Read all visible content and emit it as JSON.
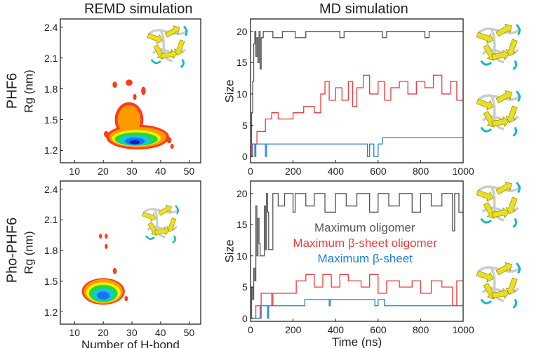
{
  "column_titles": [
    "REMD simulation",
    "MD simulation"
  ],
  "row_labels": [
    "PHF6",
    "Pho-PHF6"
  ],
  "colors": {
    "oligomer": "#555555",
    "beta_oligomer": "#f03a3a",
    "beta_sheet": "#1e7fe0",
    "contour_levels": [
      "#ff3a1a",
      "#ff9a00",
      "#f5f000",
      "#22d840",
      "#10c8e0",
      "#1e70f0",
      "#1020b0"
    ]
  },
  "chart_data": [
    {
      "type": "heatmap",
      "panel": "PHF6 REMD",
      "xlabel": "",
      "ylabel": "Rg (nm)",
      "xlim": [
        5,
        54
      ],
      "ylim": [
        1.08,
        2.48
      ],
      "xticks": [
        10,
        20,
        30,
        40,
        50
      ],
      "yticks": [
        1.2,
        1.5,
        1.8,
        2.1,
        2.4
      ],
      "contours": [
        {
          "level": 0,
          "blobs": [
            [
              32,
              1.33,
              11,
              0.12
            ],
            [
              29,
              1.5,
              5,
              0.17
            ],
            [
              24,
              1.84,
              0.8,
              0.03
            ],
            [
              29,
              1.86,
              1.2,
              0.03
            ],
            [
              34,
              1.78,
              0.8,
              0.04
            ],
            [
              31,
              1.72,
              0.6,
              0.03
            ],
            [
              43,
              1.3,
              0.8,
              0.03
            ],
            [
              44,
              1.24,
              0.6,
              0.025
            ],
            [
              21,
              1.36,
              0.8,
              0.03
            ]
          ]
        },
        {
          "level": 1,
          "blobs": [
            [
              32,
              1.33,
              10,
              0.1
            ],
            [
              29,
              1.5,
              4,
              0.14
            ]
          ]
        },
        {
          "level": 2,
          "blobs": [
            [
              31.5,
              1.32,
              8.5,
              0.08
            ]
          ]
        },
        {
          "level": 3,
          "blobs": [
            [
              31.5,
              1.31,
              7.5,
              0.065
            ]
          ]
        },
        {
          "level": 4,
          "blobs": [
            [
              31,
              1.3,
              5.5,
              0.05
            ]
          ]
        },
        {
          "level": 5,
          "blobs": [
            [
              31,
              1.29,
              3.5,
              0.035
            ]
          ]
        },
        {
          "level": 6,
          "blobs": [
            [
              31,
              1.28,
              1.8,
              0.02
            ]
          ]
        }
      ]
    },
    {
      "type": "line",
      "panel": "PHF6 MD",
      "xlabel": "",
      "ylabel": "Size",
      "xlim": [
        0,
        1000
      ],
      "ylim": [
        -1,
        22
      ],
      "xticks": [
        0,
        200,
        400,
        600,
        800,
        1000
      ],
      "yticks": [
        0,
        5,
        10,
        15,
        20
      ],
      "series": [
        {
          "key": "oligomer",
          "values": [
            [
              0,
              0
            ],
            [
              5,
              7
            ],
            [
              10,
              12
            ],
            [
              15,
              18
            ],
            [
              20,
              20
            ],
            [
              25,
              16
            ],
            [
              30,
              19
            ],
            [
              35,
              15
            ],
            [
              40,
              20
            ],
            [
              45,
              14
            ],
            [
              50,
              19
            ],
            [
              60,
              20
            ],
            [
              100,
              20
            ],
            [
              105,
              19
            ],
            [
              150,
              20
            ],
            [
              200,
              20
            ],
            [
              210,
              19
            ],
            [
              260,
              20
            ],
            [
              400,
              20
            ],
            [
              420,
              19
            ],
            [
              440,
              20
            ],
            [
              600,
              20
            ],
            [
              620,
              19
            ],
            [
              640,
              20
            ],
            [
              800,
              20
            ],
            [
              820,
              19
            ],
            [
              840,
              20
            ],
            [
              1000,
              20
            ]
          ]
        },
        {
          "key": "beta_oligomer",
          "values": [
            [
              0,
              0
            ],
            [
              10,
              2
            ],
            [
              30,
              4
            ],
            [
              60,
              4
            ],
            [
              70,
              6
            ],
            [
              100,
              7
            ],
            [
              130,
              6
            ],
            [
              200,
              7
            ],
            [
              250,
              8
            ],
            [
              300,
              7
            ],
            [
              330,
              10
            ],
            [
              350,
              12
            ],
            [
              370,
              9
            ],
            [
              400,
              11
            ],
            [
              430,
              9
            ],
            [
              460,
              12
            ],
            [
              480,
              8
            ],
            [
              500,
              11
            ],
            [
              530,
              13
            ],
            [
              560,
              10
            ],
            [
              600,
              12
            ],
            [
              630,
              9
            ],
            [
              660,
              11
            ],
            [
              700,
              12
            ],
            [
              740,
              10
            ],
            [
              780,
              12
            ],
            [
              820,
              11
            ],
            [
              860,
              13
            ],
            [
              900,
              10
            ],
            [
              940,
              12
            ],
            [
              970,
              9
            ],
            [
              1000,
              11
            ]
          ]
        },
        {
          "key": "beta_sheet",
          "values": [
            [
              0,
              0
            ],
            [
              5,
              2
            ],
            [
              20,
              0
            ],
            [
              25,
              2
            ],
            [
              60,
              2
            ],
            [
              70,
              0
            ],
            [
              75,
              2
            ],
            [
              540,
              2
            ],
            [
              550,
              0
            ],
            [
              560,
              2
            ],
            [
              580,
              0
            ],
            [
              600,
              2
            ],
            [
              620,
              3
            ],
            [
              1000,
              3
            ]
          ]
        }
      ]
    },
    {
      "type": "heatmap",
      "panel": "Pho-PHF6 REMD",
      "xlabel": "Number of H-bond",
      "ylabel": "Rg (nm)",
      "xlim": [
        5,
        54
      ],
      "ylim": [
        1.08,
        2.48
      ],
      "xticks": [
        10,
        20,
        30,
        40,
        50
      ],
      "yticks": [
        1.2,
        1.5,
        1.8,
        2.1,
        2.4
      ],
      "contours": [
        {
          "level": 0,
          "blobs": [
            [
              20,
              1.4,
              7.5,
              0.13
            ],
            [
              19,
              1.94,
              0.5,
              0.025
            ],
            [
              21,
              1.94,
              0.5,
              0.025
            ],
            [
              21,
              1.84,
              0.5,
              0.025
            ],
            [
              24,
              1.6,
              0.7,
              0.03
            ],
            [
              28,
              1.33,
              0.6,
              0.025
            ]
          ]
        },
        {
          "level": 1,
          "blobs": [
            [
              20,
              1.4,
              6.8,
              0.12
            ]
          ]
        },
        {
          "level": 2,
          "blobs": [
            [
              20,
              1.39,
              6,
              0.1
            ]
          ]
        },
        {
          "level": 3,
          "blobs": [
            [
              20,
              1.38,
              5,
              0.085
            ]
          ]
        },
        {
          "level": 4,
          "blobs": [
            [
              20,
              1.37,
              3.8,
              0.06
            ]
          ]
        },
        {
          "level": 5,
          "blobs": [
            [
              20,
              1.36,
              2.2,
              0.04
            ]
          ]
        }
      ]
    },
    {
      "type": "line",
      "panel": "Pho-PHF6 MD",
      "xlabel": "Time (ns)",
      "ylabel": "Size",
      "xlim": [
        0,
        1000
      ],
      "ylim": [
        -0.5,
        22
      ],
      "xticks": [
        0,
        200,
        400,
        600,
        800,
        1000
      ],
      "yticks": [
        0,
        5,
        10,
        15,
        20
      ],
      "legend": [
        "Maximum oligomer",
        "Maximum β-sheet oligomer",
        "Maximum β-sheet"
      ],
      "series": [
        {
          "key": "oligomer",
          "values": [
            [
              0,
              0
            ],
            [
              5,
              5
            ],
            [
              10,
              3
            ],
            [
              15,
              8
            ],
            [
              20,
              6
            ],
            [
              25,
              18
            ],
            [
              30,
              10
            ],
            [
              35,
              16
            ],
            [
              40,
              12
            ],
            [
              45,
              10
            ],
            [
              60,
              10
            ],
            [
              65,
              18
            ],
            [
              70,
              11
            ],
            [
              75,
              20
            ],
            [
              80,
              17
            ],
            [
              85,
              11
            ],
            [
              100,
              11
            ],
            [
              105,
              20
            ],
            [
              130,
              18
            ],
            [
              160,
              20
            ],
            [
              200,
              17
            ],
            [
              210,
              20
            ],
            [
              260,
              18
            ],
            [
              300,
              20
            ],
            [
              350,
              17
            ],
            [
              400,
              20
            ],
            [
              450,
              18
            ],
            [
              500,
              20
            ],
            [
              560,
              17
            ],
            [
              600,
              20
            ],
            [
              650,
              18
            ],
            [
              700,
              20
            ],
            [
              760,
              17
            ],
            [
              800,
              20
            ],
            [
              850,
              18
            ],
            [
              900,
              20
            ],
            [
              950,
              14
            ],
            [
              960,
              20
            ],
            [
              980,
              17
            ],
            [
              1000,
              20
            ]
          ]
        },
        {
          "key": "beta_oligomer",
          "values": [
            [
              0,
              0
            ],
            [
              25,
              2
            ],
            [
              45,
              0
            ],
            [
              50,
              4
            ],
            [
              100,
              2
            ],
            [
              105,
              4
            ],
            [
              210,
              4
            ],
            [
              215,
              6
            ],
            [
              260,
              7
            ],
            [
              300,
              5
            ],
            [
              340,
              7
            ],
            [
              380,
              5
            ],
            [
              420,
              7
            ],
            [
              460,
              6
            ],
            [
              520,
              5
            ],
            [
              560,
              7
            ],
            [
              600,
              4
            ],
            [
              640,
              6
            ],
            [
              700,
              5
            ],
            [
              760,
              6
            ],
            [
              800,
              4
            ],
            [
              850,
              6
            ],
            [
              900,
              5
            ],
            [
              950,
              2
            ],
            [
              970,
              6
            ],
            [
              1000,
              6
            ]
          ]
        },
        {
          "key": "beta_sheet",
          "values": [
            [
              0,
              0
            ],
            [
              45,
              2
            ],
            [
              80,
              0
            ],
            [
              85,
              2
            ],
            [
              250,
              2
            ],
            [
              255,
              3
            ],
            [
              370,
              2
            ],
            [
              375,
              3
            ],
            [
              580,
              3
            ],
            [
              585,
              2
            ],
            [
              600,
              3
            ],
            [
              630,
              2
            ],
            [
              1000,
              2
            ]
          ]
        }
      ]
    }
  ]
}
